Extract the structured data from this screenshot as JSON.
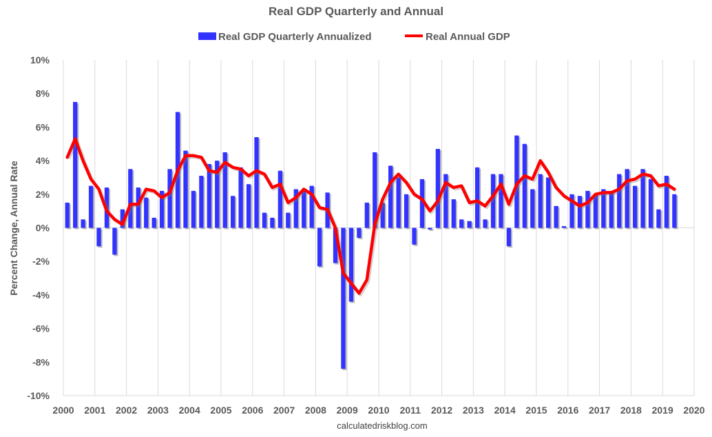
{
  "chart_data": {
    "type": "bar",
    "title": "Real GDP Quarterly and Annual",
    "ylabel": "Percent Change, Annual Rate",
    "xlabel": "",
    "source": "calculatedriskblog.com",
    "ylim": [
      -10,
      10
    ],
    "xlim": [
      2000,
      2020
    ],
    "y_ticks": [
      "10%",
      "8%",
      "6%",
      "4%",
      "2%",
      "0%",
      "-2%",
      "-4%",
      "-6%",
      "-8%",
      "-10%"
    ],
    "y_tick_values": [
      10,
      8,
      6,
      4,
      2,
      0,
      -2,
      -4,
      -6,
      -8,
      -10
    ],
    "x_ticks": [
      "2000",
      "2001",
      "2002",
      "2003",
      "2004",
      "2005",
      "2006",
      "2007",
      "2008",
      "2009",
      "2010",
      "2011",
      "2012",
      "2013",
      "2014",
      "2015",
      "2016",
      "2017",
      "2018",
      "2019",
      "2020"
    ],
    "grid": "vertical",
    "legend_position": "top",
    "colors": {
      "quarterly": "#3333ff",
      "annual": "#ff0000",
      "grid": "#d9d9d9"
    },
    "quarters": [
      "2000Q1",
      "2000Q2",
      "2000Q3",
      "2000Q4",
      "2001Q1",
      "2001Q2",
      "2001Q3",
      "2001Q4",
      "2002Q1",
      "2002Q2",
      "2002Q3",
      "2002Q4",
      "2003Q1",
      "2003Q2",
      "2003Q3",
      "2003Q4",
      "2004Q1",
      "2004Q2",
      "2004Q3",
      "2004Q4",
      "2005Q1",
      "2005Q2",
      "2005Q3",
      "2005Q4",
      "2006Q1",
      "2006Q2",
      "2006Q3",
      "2006Q4",
      "2007Q1",
      "2007Q2",
      "2007Q3",
      "2007Q4",
      "2008Q1",
      "2008Q2",
      "2008Q3",
      "2008Q4",
      "2009Q1",
      "2009Q2",
      "2009Q3",
      "2009Q4",
      "2010Q1",
      "2010Q2",
      "2010Q3",
      "2010Q4",
      "2011Q1",
      "2011Q2",
      "2011Q3",
      "2011Q4",
      "2012Q1",
      "2012Q2",
      "2012Q3",
      "2012Q4",
      "2013Q1",
      "2013Q2",
      "2013Q3",
      "2013Q4",
      "2014Q1",
      "2014Q2",
      "2014Q3",
      "2014Q4",
      "2015Q1",
      "2015Q2",
      "2015Q3",
      "2015Q4",
      "2016Q1",
      "2016Q2",
      "2016Q3",
      "2016Q4",
      "2017Q1",
      "2017Q2",
      "2017Q3",
      "2017Q4",
      "2018Q1",
      "2018Q2",
      "2018Q3",
      "2018Q4",
      "2019Q1",
      "2019Q2"
    ],
    "series": [
      {
        "name": "Real GDP Quarterly Annualized",
        "type": "bar",
        "values": [
          1.5,
          7.5,
          0.5,
          2.5,
          -1.1,
          2.4,
          -1.6,
          1.1,
          3.5,
          2.4,
          1.8,
          0.6,
          2.2,
          3.5,
          6.9,
          4.6,
          2.2,
          3.1,
          3.8,
          4.0,
          4.5,
          1.9,
          3.6,
          2.6,
          5.4,
          0.9,
          0.6,
          3.4,
          0.9,
          2.3,
          2.2,
          2.5,
          -2.3,
          2.1,
          -2.1,
          -8.4,
          -4.4,
          -0.6,
          1.5,
          4.5,
          1.5,
          3.7,
          3.0,
          2.0,
          -1.0,
          2.9,
          -0.1,
          4.7,
          3.2,
          1.7,
          0.5,
          0.4,
          3.6,
          0.5,
          3.2,
          3.2,
          -1.1,
          5.5,
          5.0,
          2.3,
          3.2,
          3.0,
          1.3,
          0.1,
          2.0,
          1.9,
          2.2,
          2.0,
          2.3,
          2.2,
          3.2,
          3.5,
          2.5,
          3.5,
          2.9,
          1.1,
          3.1,
          2.0
        ]
      },
      {
        "name": "Real Annual GDP",
        "type": "line",
        "values": [
          4.2,
          5.3,
          4.0,
          2.9,
          2.3,
          1.0,
          0.5,
          0.2,
          1.4,
          1.4,
          2.3,
          2.2,
          1.8,
          2.1,
          3.4,
          4.3,
          4.3,
          4.2,
          3.4,
          3.3,
          3.9,
          3.6,
          3.5,
          3.1,
          3.4,
          3.2,
          2.4,
          2.6,
          1.5,
          1.8,
          2.3,
          2.0,
          1.2,
          1.1,
          0.0,
          -2.7,
          -3.3,
          -3.9,
          -3.1,
          0.2,
          1.7,
          2.7,
          3.2,
          2.7,
          2.0,
          1.7,
          1.0,
          1.6,
          2.7,
          2.4,
          2.5,
          1.5,
          1.6,
          1.3,
          1.9,
          2.6,
          1.4,
          2.6,
          3.1,
          2.9,
          4.0,
          3.3,
          2.4,
          1.9,
          1.6,
          1.3,
          1.5,
          2.0,
          2.1,
          2.1,
          2.3,
          2.8,
          2.9,
          3.2,
          3.1,
          2.5,
          2.6,
          2.3
        ]
      }
    ]
  }
}
